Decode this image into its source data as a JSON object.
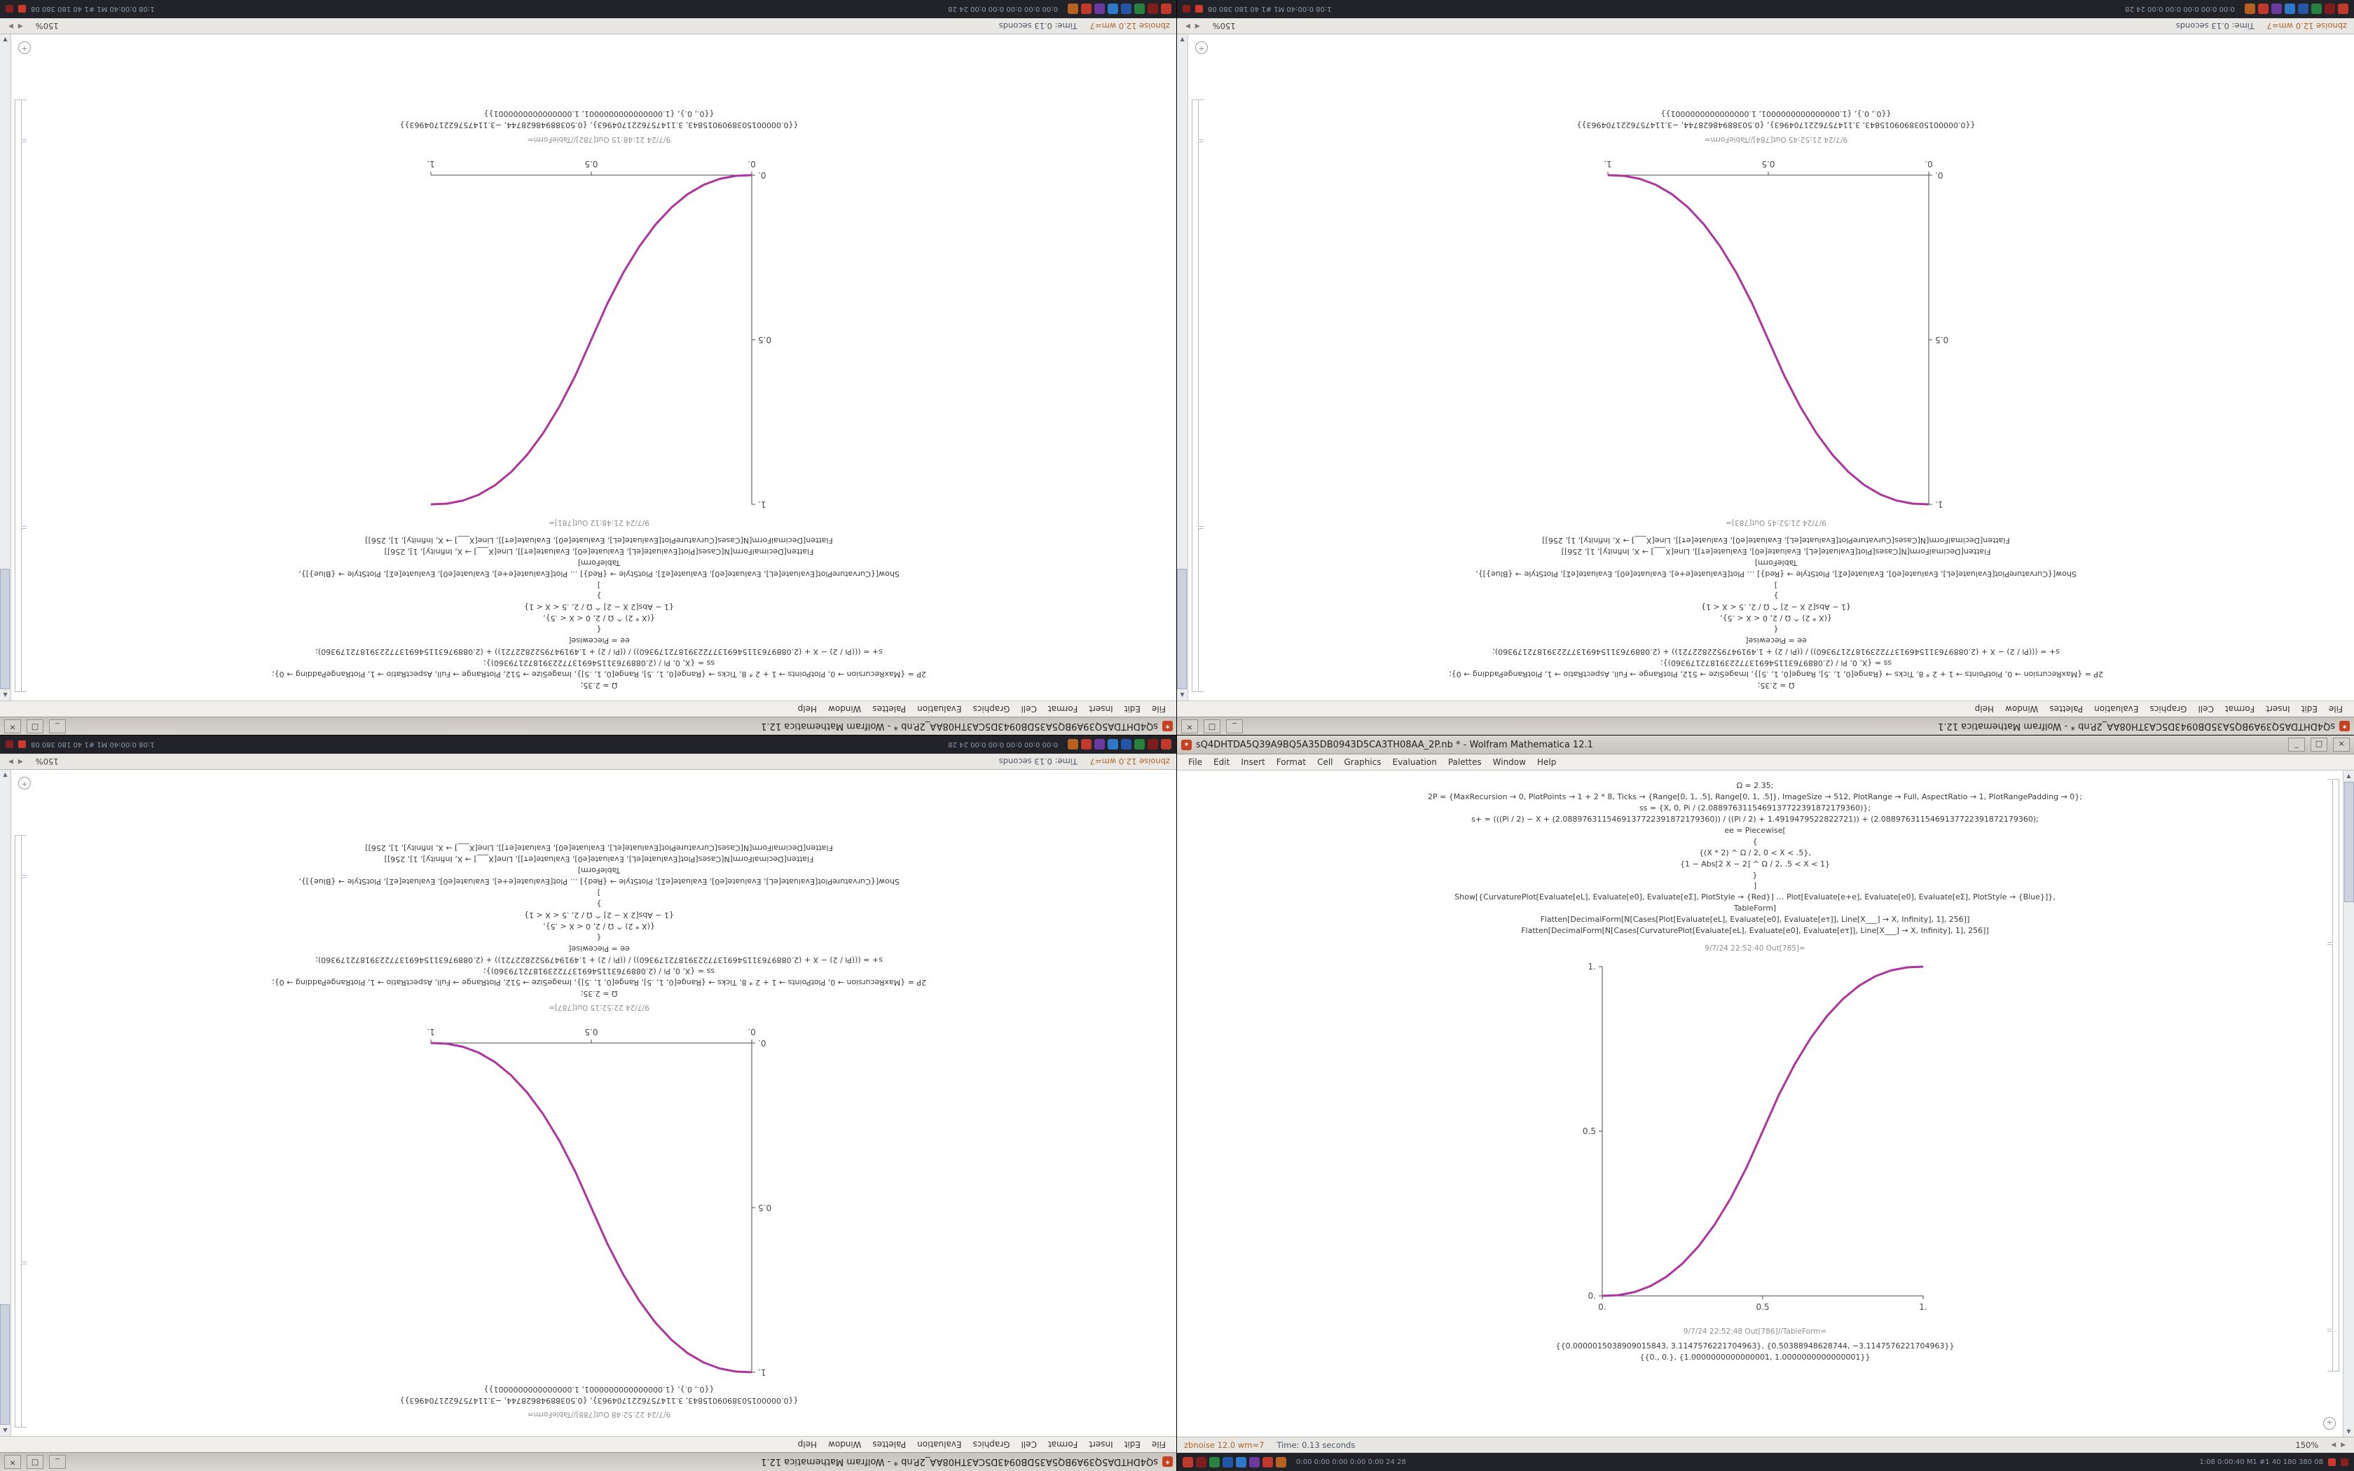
{
  "window": {
    "title": "sQ4DHTDA5Q39A9BQ5A35DB0943D5CA3TH08AA_2P.nb * - Wolfram Mathematica 12.1",
    "buttons": [
      {
        "name": "minimize",
        "glyph": "_"
      },
      {
        "name": "maximize",
        "glyph": "□"
      },
      {
        "name": "close",
        "glyph": "×"
      }
    ]
  },
  "glyphs": {
    "app_icon": "✶",
    "scroll_up": "▲",
    "scroll_down": "▼",
    "hscroll": "◀ ▶",
    "corner": "+"
  },
  "menu_items": [
    "File",
    "Edit",
    "Insert",
    "Format",
    "Cell",
    "Graphics",
    "Evaluation",
    "Palettes",
    "Window",
    "Help"
  ],
  "status_bar": {
    "host_text": "zbnoise 12.0 wm=7",
    "time_text": "Time: 0.13 seconds",
    "zoom": "150%"
  },
  "taskbar": {
    "stats_left": "0:00  0:00  0:00  0:00  0:00  24  28",
    "stats_right": "1:08  0:00:40  M1  #1  40  180  380  08",
    "tray_colors": [
      "#c0392b",
      "#7f1d1d",
      "#27813f",
      "#2456a8",
      "#2e77c9",
      "#6a3a9e",
      "#c0392b",
      "#b8601f"
    ],
    "alert_colors": [
      "#d03a2e",
      "#8a1f1f"
    ]
  },
  "notebook": {
    "inputs": [
      "Ω = 2.35;",
      "2P = {MaxRecursion → 0, PlotPoints → 1 + 2 * 8, Ticks → {Range[0, 1, .5], Range[0, 1, .5]}, ImageSize → 512, PlotRange → Full, AspectRatio → 1, PlotRangePadding → 0};",
      "ss = {X, 0, Pi / (2.0889763115469137722391872179360)};",
      "s+ = (((Pi / 2) − X + (2.0889763115469137722391872179360)) / ((Pi / 2) + 1.4919479522822721)) + (2.0889763115469137722391872179360);",
      "ee = Piecewise[",
      "{",
      "{(X * 2) ^ Ω / 2, 0 < X < .5},",
      "{1 − Abs[2 X − 2] ^ Ω / 2, .5 < X < 1}",
      "}",
      "]",
      "Show[{CurvaturePlot[Evaluate[eL], Evaluate[e0], Evaluate[eΣ], PlotStyle → {Red}] … Plot[Evaluate[e+e], Evaluate[e0], Evaluate[eΣ], PlotStyle → {Blue}]},",
      "TableForm]",
      "Flatten[DecimalForm[N[Cases[Plot[Evaluate[eL], Evaluate[e0], Evaluate[eτ]], Line[X___] → X, Infinity], 1], 256]]",
      "Flatten[DecimalForm[N[Cases[CurvaturePlot[Evaluate[eL], Evaluate[e0], Evaluate[eτ]], Line[X___] → X, Infinity], 1], 256]]"
    ],
    "table_rows": [
      "{{0.0000015038909015843, 3.1147576221704963}, {0.50388948628744, −3.1147576221704963}}",
      "{{0., 0.}, {1.0000000000000001, 1.0000000000000001}}"
    ]
  },
  "screens": {
    "tl": {
      "rotated": true,
      "order": "A",
      "chart": 0,
      "out_label": "9/7/24 21:48:12 Out[781]=",
      "table_label": "9/7/24 21:48:15 Out[782]//TableForm="
    },
    "tr": {
      "rotated": true,
      "order": "A",
      "chart": 1,
      "out_label": "9/7/24 21:52:45 Out[783]=",
      "table_label": "9/7/24 21:52:45 Out[784]//TableForm="
    },
    "bl": {
      "rotated": true,
      "order": "B",
      "chart": 2,
      "out_label": "9/7/24 22:52:15 Out[787]=",
      "table_label": "9/7/24 22:52:48 Out[788]//TableForm="
    },
    "br": {
      "rotated": false,
      "order": "A",
      "chart": 3,
      "out_label": "9/7/24 22:52:40 Out[785]=",
      "table_label": "9/7/24 22:52:48 Out[786]//TableForm="
    }
  },
  "chart_data": [
    {
      "id": "top-left-plot",
      "type": "line",
      "x": [
        0,
        0.05,
        0.1,
        0.15,
        0.2,
        0.25,
        0.3,
        0.35,
        0.4,
        0.45,
        0.5,
        0.55,
        0.6,
        0.65,
        0.7,
        0.75,
        0.8,
        0.85,
        0.9,
        0.95,
        1
      ],
      "y": [
        0,
        0.0022,
        0.0114,
        0.0295,
        0.058,
        0.098,
        0.1505,
        0.2162,
        0.296,
        0.3904,
        0.5,
        0.6096,
        0.704,
        0.7838,
        0.8495,
        0.902,
        0.942,
        0.9705,
        0.9886,
        0.9978,
        1
      ],
      "xlim": [
        0,
        1
      ],
      "ylim": [
        0,
        1
      ],
      "xticks": [
        "0.",
        "0.5",
        "1."
      ],
      "yticks": [
        "0.",
        "0.5",
        "1."
      ],
      "colors": [
        "#c92f8c",
        "#7a3cc0"
      ],
      "title": "",
      "xlabel": "",
      "ylabel": ""
    },
    {
      "id": "top-right-plot",
      "type": "line",
      "x": [
        0,
        0.05,
        0.1,
        0.15,
        0.2,
        0.25,
        0.3,
        0.35,
        0.4,
        0.45,
        0.5,
        0.55,
        0.6,
        0.65,
        0.7,
        0.75,
        0.8,
        0.85,
        0.9,
        0.95,
        1
      ],
      "y": [
        1,
        0.9978,
        0.9886,
        0.9705,
        0.942,
        0.902,
        0.8495,
        0.7838,
        0.704,
        0.6096,
        0.5,
        0.3904,
        0.296,
        0.2162,
        0.1505,
        0.098,
        0.058,
        0.0295,
        0.0114,
        0.0022,
        0
      ],
      "xlim": [
        0,
        1
      ],
      "ylim": [
        0,
        1
      ],
      "xticks": [
        "0.",
        "0.5",
        "1."
      ],
      "yticks": [
        "0.",
        "0.5",
        "1."
      ],
      "colors": [
        "#c92f8c",
        "#7a3cc0"
      ],
      "title": "",
      "xlabel": "",
      "ylabel": ""
    },
    {
      "id": "bottom-left-plot",
      "type": "line",
      "x": [
        0,
        0.05,
        0.1,
        0.15,
        0.2,
        0.25,
        0.3,
        0.35,
        0.4,
        0.45,
        0.5,
        0.55,
        0.6,
        0.65,
        0.7,
        0.75,
        0.8,
        0.85,
        0.9,
        0.95,
        1
      ],
      "y": [
        1,
        0.9978,
        0.9886,
        0.9705,
        0.942,
        0.902,
        0.8495,
        0.7838,
        0.704,
        0.6096,
        0.5,
        0.3904,
        0.296,
        0.2162,
        0.1505,
        0.098,
        0.058,
        0.0295,
        0.0114,
        0.0022,
        0
      ],
      "xlim": [
        0,
        1
      ],
      "ylim": [
        0,
        1
      ],
      "xticks": [
        "0.",
        "0.5",
        "1."
      ],
      "yticks": [
        "0.",
        "0.5",
        "1."
      ],
      "colors": [
        "#c92f8c",
        "#7a3cc0"
      ],
      "title": "",
      "xlabel": "",
      "ylabel": ""
    },
    {
      "id": "bottom-right-plot",
      "type": "line",
      "x": [
        0,
        0.05,
        0.1,
        0.15,
        0.2,
        0.25,
        0.3,
        0.35,
        0.4,
        0.45,
        0.5,
        0.55,
        0.6,
        0.65,
        0.7,
        0.75,
        0.8,
        0.85,
        0.9,
        0.95,
        1
      ],
      "y": [
        0,
        0.0022,
        0.0114,
        0.0295,
        0.058,
        0.098,
        0.1505,
        0.2162,
        0.296,
        0.3904,
        0.5,
        0.6096,
        0.704,
        0.7838,
        0.8495,
        0.902,
        0.942,
        0.9705,
        0.9886,
        0.9978,
        1
      ],
      "xlim": [
        0,
        1
      ],
      "ylim": [
        0,
        1
      ],
      "xticks": [
        "0.",
        "0.5",
        "1."
      ],
      "yticks": [
        "0.",
        "0.5",
        "1."
      ],
      "colors": [
        "#c92f8c",
        "#7a3cc0"
      ],
      "title": "",
      "xlabel": "",
      "ylabel": ""
    }
  ]
}
